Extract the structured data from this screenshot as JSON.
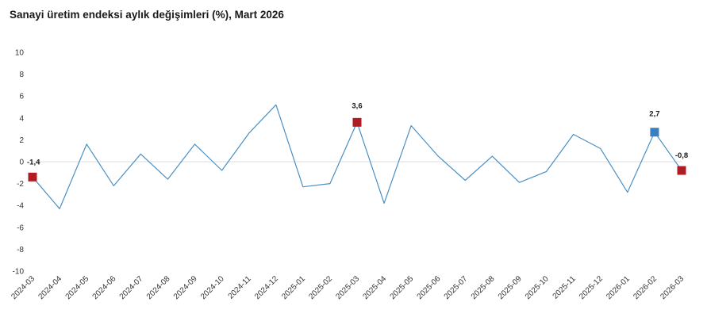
{
  "chart_data": {
    "type": "line",
    "title": "Sanayi üretim endeksi aylık değişimleri (%), Mart 2026",
    "xlabel": "",
    "ylabel": "",
    "ylim": [
      -10,
      10
    ],
    "yticks": [
      10,
      8,
      6,
      4,
      2,
      0,
      -2,
      -4,
      -6,
      -8,
      -10
    ],
    "grid": false,
    "legend": "none",
    "categories": [
      "2024-03",
      "2024-04",
      "2024-05",
      "2024-06",
      "2024-07",
      "2024-08",
      "2024-09",
      "2024-10",
      "2024-11",
      "2024-12",
      "2025-01",
      "2025-02",
      "2025-03",
      "2025-04",
      "2025-05",
      "2025-06",
      "2025-07",
      "2025-08",
      "2025-09",
      "2025-10",
      "2025-11",
      "2025-12",
      "2026-01",
      "2026-02",
      "2026-03"
    ],
    "series": [
      {
        "values": [
          -1.4,
          -4.3,
          1.6,
          -2.2,
          0.7,
          -1.6,
          1.6,
          -0.8,
          2.6,
          5.2,
          -2.3,
          -2.0,
          3.6,
          -3.8,
          3.3,
          0.5,
          -1.7,
          0.5,
          -1.9,
          -0.9,
          2.5,
          1.2,
          -2.8,
          2.7,
          -0.8
        ],
        "color": "#4a90c4"
      }
    ],
    "highlights": [
      {
        "category": "2024-03",
        "value": -1.4,
        "label": "-1,4",
        "color": "#b01c24"
      },
      {
        "category": "2025-03",
        "value": 3.6,
        "label": "3,6",
        "color": "#b01c24"
      },
      {
        "category": "2026-02",
        "value": 2.7,
        "label": "2,7",
        "color": "#3a7fc0"
      },
      {
        "category": "2026-03",
        "value": -0.8,
        "label": "-0,8",
        "color": "#b01c24"
      }
    ],
    "zero_line_color": "#dddddd"
  }
}
